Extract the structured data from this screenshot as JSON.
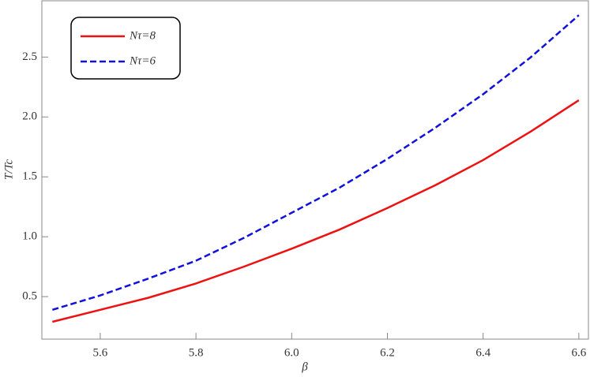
{
  "chart_data": {
    "type": "line",
    "x_label": "β",
    "y_label": "T/Tc",
    "x": [
      5.5,
      5.6,
      5.7,
      5.8,
      5.9,
      6.0,
      6.1,
      6.2,
      6.3,
      6.4,
      6.5,
      6.6
    ],
    "series": [
      {
        "name": "Nτ=8",
        "color": "#ee1111",
        "dash": false,
        "values": [
          0.29,
          0.39,
          0.49,
          0.61,
          0.75,
          0.9,
          1.06,
          1.24,
          1.43,
          1.64,
          1.88,
          2.14
        ]
      },
      {
        "name": "Nτ=6",
        "color": "#1111dd",
        "dash": true,
        "values": [
          0.39,
          0.51,
          0.65,
          0.8,
          0.99,
          1.2,
          1.41,
          1.65,
          1.91,
          2.19,
          2.5,
          2.85
        ]
      }
    ],
    "xlim": [
      5.478,
      6.62
    ],
    "ylim": [
      0.145,
      2.97
    ],
    "xticks": [
      5.6,
      5.8,
      {
        "value": 6.0,
        "label": "6.0"
      },
      6.2,
      6.4,
      6.6
    ],
    "yticks": [
      0.5,
      {
        "value": 1.0,
        "label": "1.0"
      },
      1.5,
      {
        "value": 2.0,
        "label": "2.0"
      },
      2.5
    ],
    "legend": "top-left"
  }
}
